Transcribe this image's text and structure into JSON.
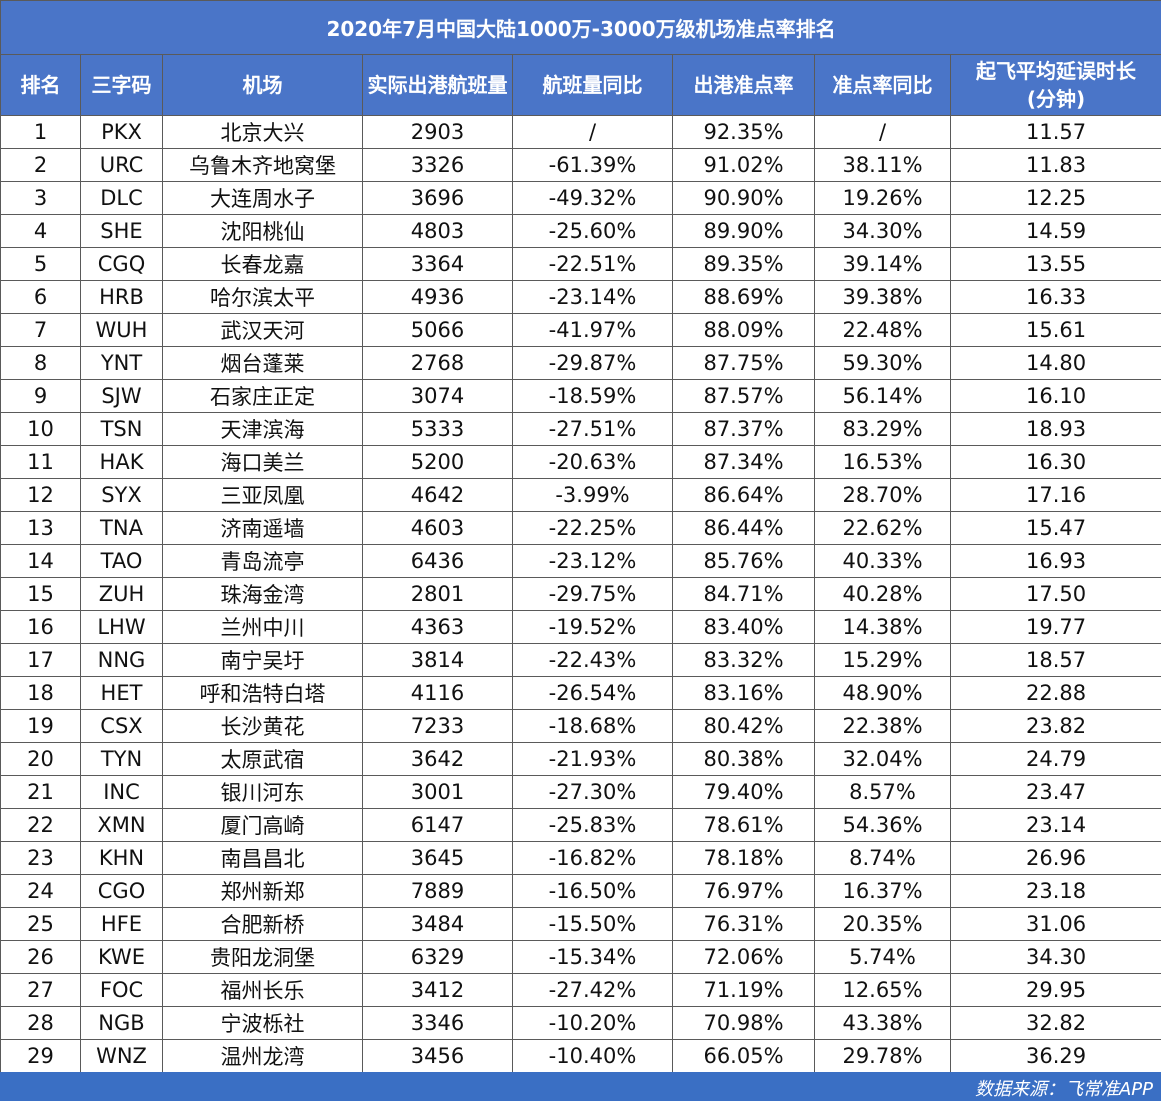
{
  "title": "2020年7月中国大陆1000万-3000万级机场准点率排名",
  "headers": {
    "rank": "排名",
    "code": "三字码",
    "airport": "机场",
    "flights": "实际出港航班量",
    "flights_yoy": "航班量同比",
    "ontime_rate": "出港准点率",
    "rate_yoy": "准点率同比",
    "delay_line1": "起飞平均延误时长",
    "delay_line2": "(分钟)"
  },
  "rows": [
    [
      "1",
      "PKX",
      "北京大兴",
      "2903",
      "/",
      "92.35%",
      "/",
      "11.57"
    ],
    [
      "2",
      "URC",
      "乌鲁木齐地窝堡",
      "3326",
      "-61.39%",
      "91.02%",
      "38.11%",
      "11.83"
    ],
    [
      "3",
      "DLC",
      "大连周水子",
      "3696",
      "-49.32%",
      "90.90%",
      "19.26%",
      "12.25"
    ],
    [
      "4",
      "SHE",
      "沈阳桃仙",
      "4803",
      "-25.60%",
      "89.90%",
      "34.30%",
      "14.59"
    ],
    [
      "5",
      "CGQ",
      "长春龙嘉",
      "3364",
      "-22.51%",
      "89.35%",
      "39.14%",
      "13.55"
    ],
    [
      "6",
      "HRB",
      "哈尔滨太平",
      "4936",
      "-23.14%",
      "88.69%",
      "39.38%",
      "16.33"
    ],
    [
      "7",
      "WUH",
      "武汉天河",
      "5066",
      "-41.97%",
      "88.09%",
      "22.48%",
      "15.61"
    ],
    [
      "8",
      "YNT",
      "烟台蓬莱",
      "2768",
      "-29.87%",
      "87.75%",
      "59.30%",
      "14.80"
    ],
    [
      "9",
      "SJW",
      "石家庄正定",
      "3074",
      "-18.59%",
      "87.57%",
      "56.14%",
      "16.10"
    ],
    [
      "10",
      "TSN",
      "天津滨海",
      "5333",
      "-27.51%",
      "87.37%",
      "83.29%",
      "18.93"
    ],
    [
      "11",
      "HAK",
      "海口美兰",
      "5200",
      "-20.63%",
      "87.34%",
      "16.53%",
      "16.30"
    ],
    [
      "12",
      "SYX",
      "三亚凤凰",
      "4642",
      "-3.99%",
      "86.64%",
      "28.70%",
      "17.16"
    ],
    [
      "13",
      "TNA",
      "济南遥墙",
      "4603",
      "-22.25%",
      "86.44%",
      "22.62%",
      "15.47"
    ],
    [
      "14",
      "TAO",
      "青岛流亭",
      "6436",
      "-23.12%",
      "85.76%",
      "40.33%",
      "16.93"
    ],
    [
      "15",
      "ZUH",
      "珠海金湾",
      "2801",
      "-29.75%",
      "84.71%",
      "40.28%",
      "17.50"
    ],
    [
      "16",
      "LHW",
      "兰州中川",
      "4363",
      "-19.52%",
      "83.40%",
      "14.38%",
      "19.77"
    ],
    [
      "17",
      "NNG",
      "南宁吴圩",
      "3814",
      "-22.43%",
      "83.32%",
      "15.29%",
      "18.57"
    ],
    [
      "18",
      "HET",
      "呼和浩特白塔",
      "4116",
      "-26.54%",
      "83.16%",
      "48.90%",
      "22.88"
    ],
    [
      "19",
      "CSX",
      "长沙黄花",
      "7233",
      "-18.68%",
      "80.42%",
      "22.38%",
      "23.82"
    ],
    [
      "20",
      "TYN",
      "太原武宿",
      "3642",
      "-21.93%",
      "80.38%",
      "32.04%",
      "24.79"
    ],
    [
      "21",
      "INC",
      "银川河东",
      "3001",
      "-27.30%",
      "79.40%",
      "8.57%",
      "23.47"
    ],
    [
      "22",
      "XMN",
      "厦门高崎",
      "6147",
      "-25.83%",
      "78.61%",
      "54.36%",
      "23.14"
    ],
    [
      "23",
      "KHN",
      "南昌昌北",
      "3645",
      "-16.82%",
      "78.18%",
      "8.74%",
      "26.96"
    ],
    [
      "24",
      "CGO",
      "郑州新郑",
      "7889",
      "-16.50%",
      "76.97%",
      "16.37%",
      "23.18"
    ],
    [
      "25",
      "HFE",
      "合肥新桥",
      "3484",
      "-15.50%",
      "76.31%",
      "20.35%",
      "31.06"
    ],
    [
      "26",
      "KWE",
      "贵阳龙洞堡",
      "6329",
      "-15.34%",
      "72.06%",
      "5.74%",
      "34.30"
    ],
    [
      "27",
      "FOC",
      "福州长乐",
      "3412",
      "-27.42%",
      "71.19%",
      "12.65%",
      "29.95"
    ],
    [
      "28",
      "NGB",
      "宁波栎社",
      "3346",
      "-10.20%",
      "70.98%",
      "43.38%",
      "32.82"
    ],
    [
      "29",
      "WNZ",
      "温州龙湾",
      "3456",
      "-10.40%",
      "66.05%",
      "29.78%",
      "36.29"
    ]
  ],
  "footer": "数据来源：飞常准APP",
  "colors": {
    "header_bg": "#4a75c8",
    "footer_bg": "#3a6fc4",
    "border": "#5a5a5a"
  }
}
